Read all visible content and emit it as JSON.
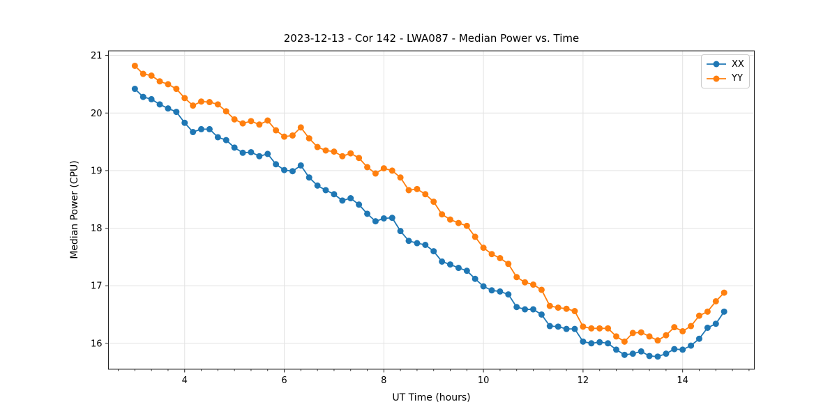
{
  "chart_data": {
    "type": "line",
    "title": "2023-12-13 - Cor 142 - LWA087 - Median Power vs. Time",
    "xlabel": "UT Time (hours)",
    "ylabel": "Median Power (CPU)",
    "grid": true,
    "legend": {
      "position": "upper right"
    },
    "marker": "circle",
    "xlim": [
      2.47,
      15.44
    ],
    "ylim": [
      15.55,
      21.08
    ],
    "xticks": [
      4,
      6,
      8,
      10,
      12,
      14
    ],
    "yticks": [
      16,
      17,
      18,
      19,
      20,
      21
    ],
    "x_minor_tick_step": 0.3333,
    "x": [
      3.0,
      3.167,
      3.333,
      3.5,
      3.667,
      3.833,
      4.0,
      4.167,
      4.333,
      4.5,
      4.667,
      4.833,
      5.0,
      5.167,
      5.333,
      5.5,
      5.667,
      5.833,
      6.0,
      6.167,
      6.333,
      6.5,
      6.667,
      6.833,
      7.0,
      7.167,
      7.333,
      7.5,
      7.667,
      7.833,
      8.0,
      8.167,
      8.333,
      8.5,
      8.667,
      8.833,
      9.0,
      9.167,
      9.333,
      9.5,
      9.667,
      9.833,
      10.0,
      10.167,
      10.333,
      10.5,
      10.667,
      10.833,
      11.0,
      11.167,
      11.333,
      11.5,
      11.667,
      11.833,
      12.0,
      12.167,
      12.333,
      12.5,
      12.667,
      12.833,
      13.0,
      13.167,
      13.333,
      13.5,
      13.667,
      13.833,
      14.0,
      14.167,
      14.333,
      14.5,
      14.667,
      14.833
    ],
    "series": [
      {
        "name": "XX",
        "color": "#1f77b4",
        "values": [
          20.42,
          20.28,
          20.24,
          20.15,
          20.08,
          20.02,
          19.83,
          19.67,
          19.72,
          19.72,
          19.58,
          19.53,
          19.4,
          19.31,
          19.32,
          19.25,
          19.29,
          19.11,
          19.01,
          18.99,
          19.09,
          18.88,
          18.74,
          18.66,
          18.59,
          18.48,
          18.52,
          18.41,
          18.25,
          18.12,
          18.17,
          18.18,
          17.95,
          17.78,
          17.74,
          17.71,
          17.6,
          17.42,
          17.37,
          17.31,
          17.26,
          17.12,
          16.99,
          16.92,
          16.9,
          16.85,
          16.63,
          16.59,
          16.59,
          16.5,
          16.3,
          16.29,
          16.25,
          16.25,
          16.03,
          16.0,
          16.02,
          16.0,
          15.89,
          15.8,
          15.82,
          15.86,
          15.78,
          15.77,
          15.82,
          15.9,
          15.89,
          15.96,
          16.08,
          16.27,
          16.34,
          16.55
        ]
      },
      {
        "name": "YY",
        "color": "#ff7f0e",
        "values": [
          20.82,
          20.68,
          20.65,
          20.55,
          20.5,
          20.42,
          20.26,
          20.13,
          20.2,
          20.19,
          20.15,
          20.03,
          19.89,
          19.82,
          19.86,
          19.8,
          19.87,
          19.7,
          19.59,
          19.61,
          19.75,
          19.56,
          19.41,
          19.35,
          19.33,
          19.25,
          19.3,
          19.22,
          19.06,
          18.95,
          19.04,
          19.0,
          18.88,
          18.66,
          18.68,
          18.59,
          18.46,
          18.24,
          18.15,
          18.09,
          18.04,
          17.85,
          17.66,
          17.55,
          17.48,
          17.38,
          17.15,
          17.06,
          17.02,
          16.93,
          16.65,
          16.62,
          16.6,
          16.56,
          16.29,
          16.26,
          16.26,
          16.26,
          16.12,
          16.03,
          16.18,
          16.19,
          16.12,
          16.05,
          16.14,
          16.28,
          16.21,
          16.3,
          16.48,
          16.55,
          16.73,
          16.88
        ]
      }
    ]
  }
}
